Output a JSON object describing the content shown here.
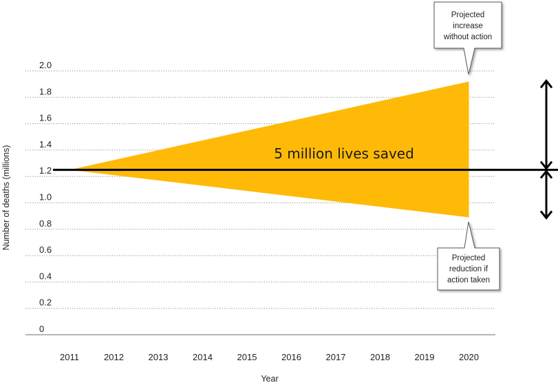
{
  "chart_data": {
    "type": "area",
    "xlabel": "Year",
    "ylabel": "Number of deaths (millions)",
    "x": [
      "2011",
      "2012",
      "2013",
      "2014",
      "2015",
      "2016",
      "2017",
      "2018",
      "2019",
      "2020"
    ],
    "y_ticks": [
      "0",
      "0.2",
      "0.4",
      "0.6",
      "0.8",
      "1.0",
      "1.2",
      "1.4",
      "1.6",
      "1.8",
      "2.0"
    ],
    "ylim": [
      0,
      2.0
    ],
    "grid": true,
    "baseline": 1.25,
    "series": [
      {
        "name": "Projected increase without action",
        "x": [
          "2011",
          "2020"
        ],
        "values": [
          1.25,
          1.92
        ]
      },
      {
        "name": "Projected reduction if action taken",
        "x": [
          "2011",
          "2020"
        ],
        "values": [
          1.25,
          0.89
        ]
      }
    ],
    "fill_label": "5 million lives saved",
    "annotations": {
      "top": [
        "Projected",
        "increase",
        "without action"
      ],
      "bottom": [
        "Projected",
        "reduction if",
        "action taken"
      ]
    },
    "colors": {
      "fill": "#FFBA08",
      "line": "#000000",
      "grid": "#8a8a8a"
    }
  }
}
